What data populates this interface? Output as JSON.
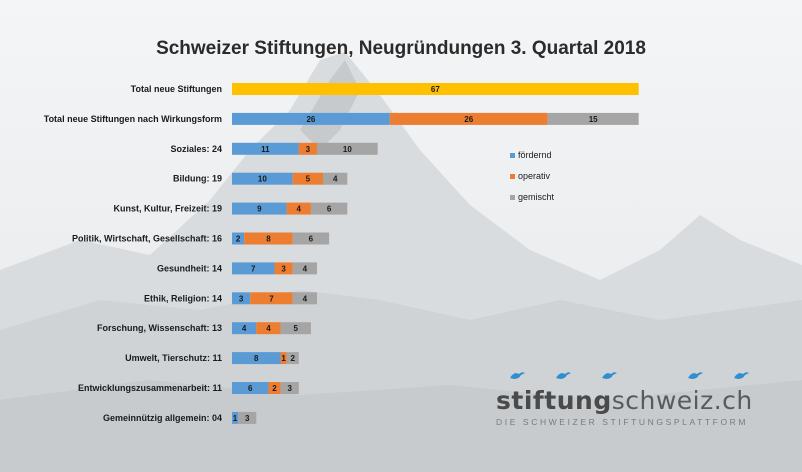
{
  "title": "Schweizer Stiftungen, Neugründungen 3. Quartal 2018",
  "colors": {
    "foerdernd": "#5b9bd5",
    "operativ": "#ed7d31",
    "gemischt": "#a5a5a5",
    "total": "#ffc000"
  },
  "chart_data": {
    "type": "bar",
    "orientation": "horizontal",
    "stacked": true,
    "title": "Schweizer Stiftungen, Neugründungen 3. Quartal 2018",
    "categories": [
      "Total neue Stiftungen",
      "Total neue Stiftungen nach Wirkungsform",
      "Soziales: 24",
      "Bildung: 19",
      "Kunst, Kultur, Freizeit: 19",
      "Politik, Wirtschaft, Gesellschaft: 16",
      "Gesundheit: 14",
      "Ethik, Religion: 14",
      "Forschung, Wissenschaft: 13",
      "Umwelt, Tierschutz: 11",
      "Entwicklungszusammenarbeit: 11",
      "Gemeinnützig allgemein: 04"
    ],
    "total": {
      "category": "Total neue Stiftungen",
      "value": 67
    },
    "series": [
      {
        "name": "fördernd",
        "values": [
          null,
          26,
          11,
          10,
          9,
          2,
          7,
          3,
          4,
          8,
          6,
          1
        ]
      },
      {
        "name": "operativ",
        "values": [
          null,
          26,
          3,
          5,
          4,
          8,
          3,
          7,
          4,
          1,
          2,
          0
        ]
      },
      {
        "name": "gemischt",
        "values": [
          null,
          15,
          10,
          4,
          6,
          6,
          4,
          4,
          5,
          2,
          3,
          3
        ]
      }
    ],
    "legend_position": "right",
    "grid": false
  },
  "brand": {
    "name_part1": "stiftung",
    "name_part2": "schweiz.ch",
    "tagline": "DIE SCHWEIZER STIFTUNGSPLATTFORM"
  }
}
